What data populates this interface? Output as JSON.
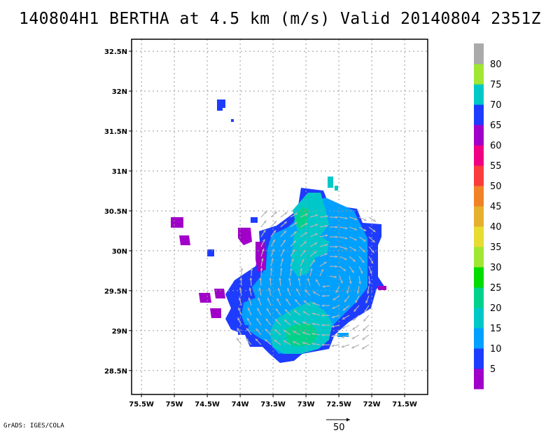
{
  "title": "140804H1 BERTHA at 4.5 km (m/s) Valid 20140804 2351Z",
  "credit": "GrADS: IGES/COLA",
  "map": {
    "lon_ticks": [
      "75.5W",
      "75W",
      "74.5W",
      "74W",
      "73.5W",
      "73W",
      "72.5W",
      "72W",
      "71.5W"
    ],
    "lon_values": [
      -75.5,
      -75,
      -74.5,
      -74,
      -73.5,
      -73,
      -72.5,
      -72,
      -71.5
    ],
    "lat_ticks": [
      "32.5N",
      "32N",
      "31.5N",
      "31N",
      "30.5N",
      "30N",
      "29.5N",
      "29N",
      "28.5N"
    ],
    "lat_values": [
      32.5,
      32,
      31.5,
      31,
      30.5,
      30,
      29.5,
      29,
      28.5
    ],
    "lon_range": [
      -75.65,
      -71.15
    ],
    "lat_range": [
      28.2,
      32.65
    ],
    "grid": true
  },
  "colorbar": {
    "labels": [
      "5",
      "10",
      "15",
      "20",
      "25",
      "30",
      "35",
      "40",
      "45",
      "50",
      "55",
      "60",
      "65",
      "70",
      "75",
      "80"
    ],
    "colors": [
      "#a000c8",
      "#1e3cff",
      "#00a0ff",
      "#00c8c8",
      "#00d28c",
      "#00dc00",
      "#a0e632",
      "#e6dc32",
      "#e6af2d",
      "#f08228",
      "#fa3c3c",
      "#f00082",
      "#a000c8",
      "#1e3cff",
      "#00c8c8",
      "#a0e632",
      "#aaaaaa"
    ]
  },
  "reference_vector": {
    "label": "50"
  }
}
